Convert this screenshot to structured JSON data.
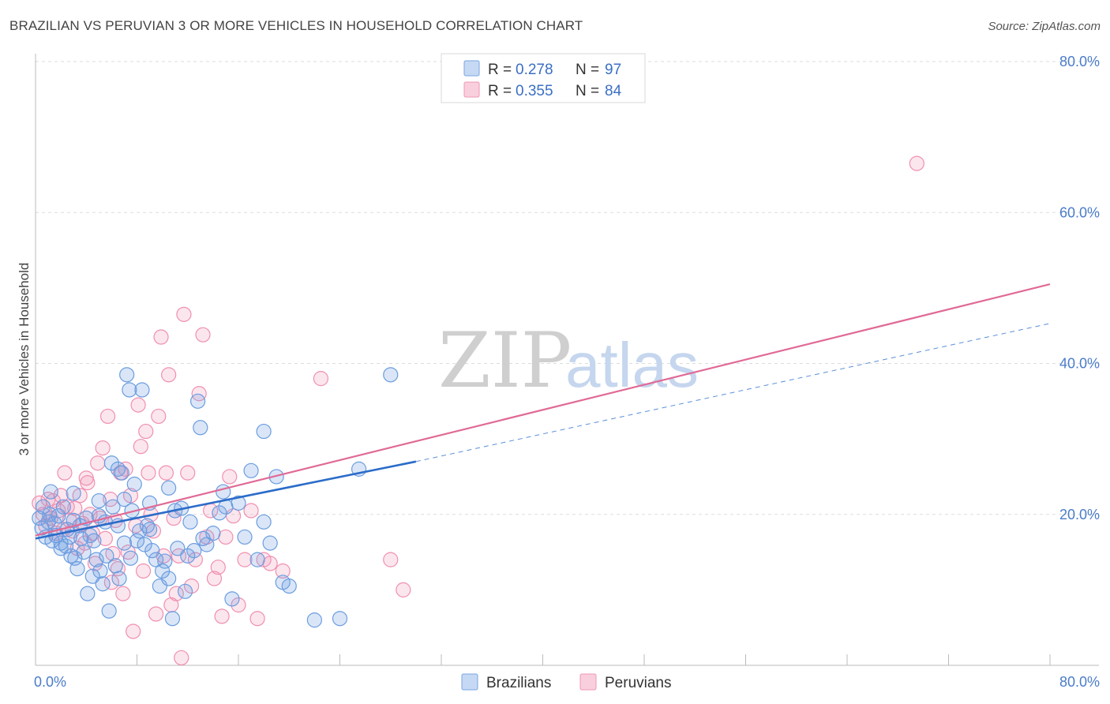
{
  "title": "BRAZILIAN VS PERUVIAN 3 OR MORE VEHICLES IN HOUSEHOLD CORRELATION CHART",
  "source": "Source: ZipAtlas.com",
  "watermark": {
    "zip": "ZIP",
    "atlas": "atlas"
  },
  "colors": {
    "brazilians": "#6b9de0",
    "peruvians": "#f08fb0",
    "brazilians_line": "#2b6cc9",
    "peruvians_line": "#e06a96",
    "tick_text": "#4a7cc9"
  },
  "chart_data": {
    "type": "scatter",
    "title": "BRAZILIAN VS PERUVIAN 3 OR MORE VEHICLES IN HOUSEHOLD CORRELATION CHART",
    "xlabel": "",
    "ylabel": "3 or more Vehicles in Household",
    "xlim": [
      0,
      80
    ],
    "ylim": [
      0,
      80
    ],
    "x_ticks": [
      "0.0%",
      "80.0%"
    ],
    "y_ticks": [
      "20.0%",
      "40.0%",
      "60.0%",
      "80.0%"
    ],
    "y_tick_values": [
      20,
      40,
      60,
      80
    ],
    "grid": true,
    "legend": {
      "placement": "top-center",
      "entries": [
        {
          "r_label": "R =",
          "r": "0.278",
          "n_label": "N =",
          "n": "97"
        },
        {
          "r_label": "R =",
          "r": "0.355",
          "n_label": "N =",
          "n": "84"
        }
      ]
    },
    "bottom_legend": [
      "Brazilians",
      "Peruvians"
    ],
    "series": [
      {
        "name": "Brazilians",
        "trend": {
          "x0": 0,
          "y0": 16.8,
          "x1": 30,
          "y1": 27.0,
          "dash_to_x": 80,
          "dash_to_y": 45.3
        },
        "points": [
          [
            0.3,
            19.5
          ],
          [
            0.5,
            18.2
          ],
          [
            0.6,
            21.0
          ],
          [
            0.8,
            17.0
          ],
          [
            1.0,
            19.0
          ],
          [
            1.1,
            20.0
          ],
          [
            1.3,
            16.5
          ],
          [
            1.5,
            18.8
          ],
          [
            1.6,
            17.2
          ],
          [
            1.8,
            19.8
          ],
          [
            2.0,
            16.2
          ],
          [
            2.2,
            21.0
          ],
          [
            2.4,
            15.8
          ],
          [
            2.5,
            18.0
          ],
          [
            2.7,
            17.0
          ],
          [
            2.8,
            14.5
          ],
          [
            3.0,
            19.2
          ],
          [
            3.1,
            14.2
          ],
          [
            3.3,
            12.8
          ],
          [
            3.5,
            18.5
          ],
          [
            3.6,
            16.8
          ],
          [
            3.8,
            15.0
          ],
          [
            4.0,
            19.5
          ],
          [
            4.1,
            9.5
          ],
          [
            4.3,
            17.2
          ],
          [
            4.5,
            11.8
          ],
          [
            4.6,
            16.5
          ],
          [
            4.8,
            14.0
          ],
          [
            5.0,
            19.8
          ],
          [
            5.1,
            12.5
          ],
          [
            5.3,
            10.8
          ],
          [
            5.5,
            19.0
          ],
          [
            5.6,
            14.5
          ],
          [
            5.8,
            7.2
          ],
          [
            6.0,
            26.8
          ],
          [
            6.1,
            21.0
          ],
          [
            6.3,
            13.2
          ],
          [
            6.5,
            26.0
          ],
          [
            6.6,
            11.5
          ],
          [
            6.8,
            25.5
          ],
          [
            7.0,
            22.0
          ],
          [
            7.2,
            38.5
          ],
          [
            7.4,
            36.5
          ],
          [
            7.5,
            14.2
          ],
          [
            7.6,
            20.5
          ],
          [
            7.8,
            24.0
          ],
          [
            8.0,
            16.5
          ],
          [
            8.2,
            17.8
          ],
          [
            8.4,
            36.5
          ],
          [
            8.6,
            16.0
          ],
          [
            8.8,
            18.5
          ],
          [
            9.0,
            21.5
          ],
          [
            9.2,
            15.2
          ],
          [
            9.5,
            14.0
          ],
          [
            9.8,
            10.5
          ],
          [
            10.0,
            12.5
          ],
          [
            10.2,
            13.8
          ],
          [
            10.5,
            11.5
          ],
          [
            10.8,
            6.2
          ],
          [
            11.0,
            20.5
          ],
          [
            11.2,
            15.5
          ],
          [
            11.5,
            20.8
          ],
          [
            11.8,
            9.8
          ],
          [
            12.0,
            14.5
          ],
          [
            12.2,
            19.0
          ],
          [
            12.5,
            15.2
          ],
          [
            12.8,
            35.0
          ],
          [
            13.0,
            31.5
          ],
          [
            13.2,
            16.8
          ],
          [
            13.5,
            16.0
          ],
          [
            14.0,
            17.5
          ],
          [
            14.5,
            20.2
          ],
          [
            14.8,
            23.0
          ],
          [
            15.0,
            21.0
          ],
          [
            15.5,
            8.8
          ],
          [
            16.0,
            21.5
          ],
          [
            16.5,
            17.0
          ],
          [
            17.0,
            25.8
          ],
          [
            17.5,
            14.0
          ],
          [
            18.0,
            19.0
          ],
          [
            18.5,
            16.2
          ],
          [
            19.5,
            11.0
          ],
          [
            20.0,
            10.5
          ],
          [
            22.0,
            6.0
          ],
          [
            24.0,
            6.2
          ],
          [
            25.5,
            26.0
          ],
          [
            28.0,
            38.5
          ],
          [
            18.0,
            31.0
          ],
          [
            19.0,
            25.0
          ],
          [
            10.5,
            23.5
          ],
          [
            6.5,
            18.5
          ],
          [
            3.0,
            22.8
          ],
          [
            2.0,
            15.5
          ],
          [
            5.0,
            21.8
          ],
          [
            9.0,
            18.0
          ],
          [
            7.0,
            16.2
          ],
          [
            1.2,
            23.0
          ]
        ]
      },
      {
        "name": "Peruvians",
        "trend": {
          "x0": 0,
          "y0": 17.2,
          "x1": 80,
          "y1": 50.5
        },
        "points": [
          [
            0.3,
            21.5
          ],
          [
            0.6,
            20.0
          ],
          [
            0.8,
            18.5
          ],
          [
            1.0,
            22.0
          ],
          [
            1.2,
            19.5
          ],
          [
            1.4,
            21.8
          ],
          [
            1.6,
            17.5
          ],
          [
            1.8,
            20.5
          ],
          [
            2.0,
            22.5
          ],
          [
            2.2,
            18.0
          ],
          [
            2.5,
            21.0
          ],
          [
            2.7,
            19.2
          ],
          [
            2.9,
            17.8
          ],
          [
            3.1,
            20.8
          ],
          [
            3.3,
            15.5
          ],
          [
            3.5,
            22.5
          ],
          [
            3.7,
            18.8
          ],
          [
            3.9,
            16.2
          ],
          [
            4.1,
            24.2
          ],
          [
            4.3,
            20.0
          ],
          [
            4.5,
            17.5
          ],
          [
            4.7,
            13.5
          ],
          [
            4.9,
            26.8
          ],
          [
            5.1,
            19.5
          ],
          [
            5.3,
            28.8
          ],
          [
            5.5,
            16.8
          ],
          [
            5.7,
            33.0
          ],
          [
            5.9,
            22.0
          ],
          [
            6.1,
            14.8
          ],
          [
            6.3,
            19.2
          ],
          [
            6.5,
            12.8
          ],
          [
            6.7,
            25.5
          ],
          [
            6.9,
            9.5
          ],
          [
            7.1,
            26.0
          ],
          [
            7.3,
            15.0
          ],
          [
            7.5,
            22.5
          ],
          [
            7.7,
            4.5
          ],
          [
            7.9,
            18.5
          ],
          [
            8.1,
            34.5
          ],
          [
            8.3,
            29.0
          ],
          [
            8.5,
            12.5
          ],
          [
            8.7,
            31.0
          ],
          [
            8.9,
            25.5
          ],
          [
            9.1,
            20.0
          ],
          [
            9.3,
            17.8
          ],
          [
            9.5,
            6.8
          ],
          [
            9.7,
            33.0
          ],
          [
            9.9,
            43.5
          ],
          [
            10.1,
            14.5
          ],
          [
            10.3,
            25.5
          ],
          [
            10.5,
            38.5
          ],
          [
            10.7,
            8.0
          ],
          [
            10.9,
            19.5
          ],
          [
            11.1,
            9.5
          ],
          [
            11.3,
            14.5
          ],
          [
            11.5,
            1.0
          ],
          [
            11.7,
            46.5
          ],
          [
            12.0,
            25.5
          ],
          [
            12.3,
            10.5
          ],
          [
            12.6,
            14.0
          ],
          [
            12.9,
            36.0
          ],
          [
            13.2,
            43.8
          ],
          [
            13.5,
            17.0
          ],
          [
            13.8,
            20.5
          ],
          [
            14.1,
            11.5
          ],
          [
            14.4,
            13.0
          ],
          [
            14.7,
            6.5
          ],
          [
            15.0,
            17.0
          ],
          [
            15.3,
            25.0
          ],
          [
            15.6,
            19.8
          ],
          [
            16.0,
            8.0
          ],
          [
            16.5,
            14.0
          ],
          [
            17.0,
            20.5
          ],
          [
            17.5,
            6.2
          ],
          [
            18.0,
            14.0
          ],
          [
            18.5,
            13.5
          ],
          [
            22.5,
            38.0
          ],
          [
            28.0,
            14.0
          ],
          [
            29.0,
            10.0
          ],
          [
            69.5,
            66.5
          ],
          [
            19.5,
            12.5
          ],
          [
            4.0,
            24.8
          ],
          [
            2.3,
            25.5
          ],
          [
            6.0,
            11.0
          ]
        ]
      }
    ]
  }
}
